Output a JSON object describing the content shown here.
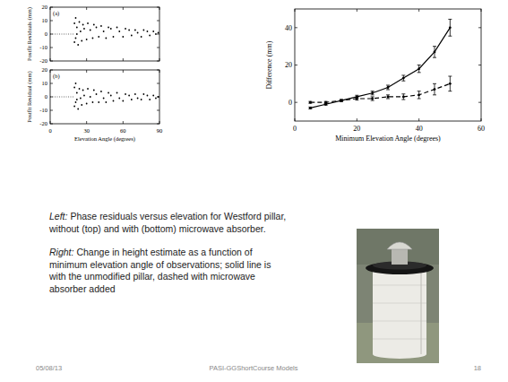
{
  "chart_data": [
    {
      "type": "scatter",
      "annotation": "(a)",
      "y_label": "Postfit Residuals (mm)",
      "x": [
        20,
        20,
        21,
        21,
        22,
        23,
        24,
        25,
        26,
        27,
        28,
        30,
        31,
        33,
        35,
        36,
        38,
        40,
        42,
        44,
        46,
        48,
        50,
        52,
        55,
        57,
        60,
        62,
        65,
        67,
        70,
        72,
        75,
        77,
        80,
        82,
        85,
        87,
        89,
        22
      ],
      "values": [
        8,
        -6,
        12,
        -3,
        5,
        -8,
        9,
        2,
        -5,
        7,
        4,
        -4,
        8,
        3,
        -3,
        7,
        5,
        -2,
        6,
        2,
        -3,
        5,
        4,
        -2,
        5,
        2,
        -2,
        4,
        3,
        -1,
        3,
        1,
        -2,
        3,
        2,
        -1,
        2,
        0,
        1,
        0
      ],
      "color": "#000000",
      "marker": "dot",
      "xlim": [
        0,
        90
      ],
      "xticks": [
        0,
        30,
        60,
        90
      ],
      "ylim": [
        -20,
        20
      ],
      "yticks": [
        -20,
        -10,
        0,
        10,
        20
      ],
      "tick_labels": "y"
    },
    {
      "type": "scatter",
      "annotation": "(b)",
      "y_label": "Postfit Residual (mm)",
      "x_label": "Elevation Angle (degrees)",
      "x": [
        20,
        20,
        21,
        21,
        22,
        23,
        24,
        25,
        26,
        27,
        28,
        30,
        31,
        33,
        35,
        36,
        38,
        40,
        42,
        44,
        46,
        48,
        50,
        52,
        55,
        57,
        60,
        62,
        65,
        67,
        70,
        72,
        75,
        77,
        80,
        82,
        85,
        87,
        89,
        22
      ],
      "values": [
        7,
        -7,
        10,
        -4,
        3,
        -9,
        6,
        -1,
        -6,
        5,
        1,
        -5,
        6,
        0,
        -4,
        5,
        2,
        -4,
        4,
        -1,
        -4,
        3,
        1,
        -3,
        3,
        -1,
        -3,
        2,
        1,
        -2,
        2,
        -1,
        -2,
        2,
        1,
        -2,
        1,
        -1,
        0,
        -2
      ],
      "color": "#000000",
      "marker": "dot",
      "xlim": [
        0,
        90
      ],
      "xticks": [
        0,
        30,
        60,
        90
      ],
      "ylim": [
        -20,
        20
      ],
      "yticks": [
        -20,
        -10,
        0,
        10,
        20
      ]
    },
    {
      "type": "line",
      "x_label": "Minimum Elevation Angle (degrees)",
      "y_label": "Difference (mm)",
      "x": [
        5,
        10,
        15,
        20,
        25,
        30,
        35,
        40,
        45,
        50
      ],
      "series": [
        {
          "color": "#000000",
          "line_style": "solid",
          "marker": "circle",
          "values": [
            -3,
            -1,
            1,
            3,
            5,
            8,
            13,
            18,
            27,
            40
          ],
          "errors": [
            0.5,
            0.5,
            0.5,
            0.8,
            1,
            1.2,
            1.5,
            2,
            3,
            4.5
          ]
        },
        {
          "color": "#000000",
          "line_style": "dashed",
          "marker": "circle",
          "values": [
            0,
            0,
            1,
            2,
            2,
            3,
            3,
            4,
            7,
            10
          ],
          "errors": [
            0.5,
            0.5,
            0.5,
            0.8,
            1,
            1,
            1.5,
            2,
            3,
            4
          ]
        }
      ],
      "xlim": [
        0,
        60
      ],
      "xticks": [
        0,
        20,
        40,
        60
      ],
      "ylim": [
        -10,
        50
      ],
      "yticks": [
        0,
        20,
        40
      ]
    }
  ],
  "captions": [
    {
      "label": "Left:",
      "lines": [
        "Phase residuals versus elevation for Westford pillar,",
        "without (top) and with (bottom) microwave absorber."
      ]
    },
    {
      "label": "Right:",
      "lines": [
        "Change in height estimate as a function of",
        "minimum elevation angle of observations; solid line is",
        "with the unmodified pillar, dashed with microwave",
        "absorber added"
      ]
    }
  ],
  "footer": {
    "date": "05/08/13",
    "title": "PASI-GGShortCourse Models",
    "page": "18"
  }
}
